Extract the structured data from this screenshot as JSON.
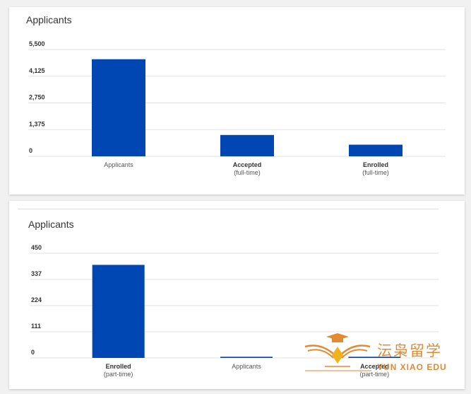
{
  "charts": {
    "full_time": {
      "title": "Applicants"
    },
    "part_time": {
      "title": "Applicants"
    }
  },
  "watermark": {
    "chinese_text": "沄枭留学",
    "english_text": "YUN XIAO EDU"
  },
  "colors": {
    "bar": "#0047b3",
    "watermark": "#e28a34"
  },
  "chart_data": [
    {
      "type": "bar",
      "title": "Applicants",
      "categories": [
        {
          "label": "Applicants",
          "sub": "",
          "bold": false
        },
        {
          "label": "Accepted",
          "sub": "(full-time)",
          "bold": true
        },
        {
          "label": "Enrolled",
          "sub": "(full-time)",
          "bold": true
        }
      ],
      "values": [
        5000,
        1100,
        600
      ],
      "yticks": [
        "0",
        "1,375",
        "2,750",
        "4,125",
        "5,500"
      ],
      "ylim": [
        0,
        5500
      ],
      "grid": true
    },
    {
      "type": "bar",
      "title": "Applicants",
      "categories": [
        {
          "label": "Enrolled",
          "sub": "(part-time)",
          "bold": true
        },
        {
          "label": "Applicants",
          "sub": "",
          "bold": false
        },
        {
          "label": "Accepted",
          "sub": "(part-time)",
          "bold": true
        }
      ],
      "values": [
        400,
        5,
        5
      ],
      "yticks": [
        "0",
        "111",
        "224",
        "337",
        "450"
      ],
      "ylim": [
        0,
        450
      ],
      "grid": true
    }
  ]
}
